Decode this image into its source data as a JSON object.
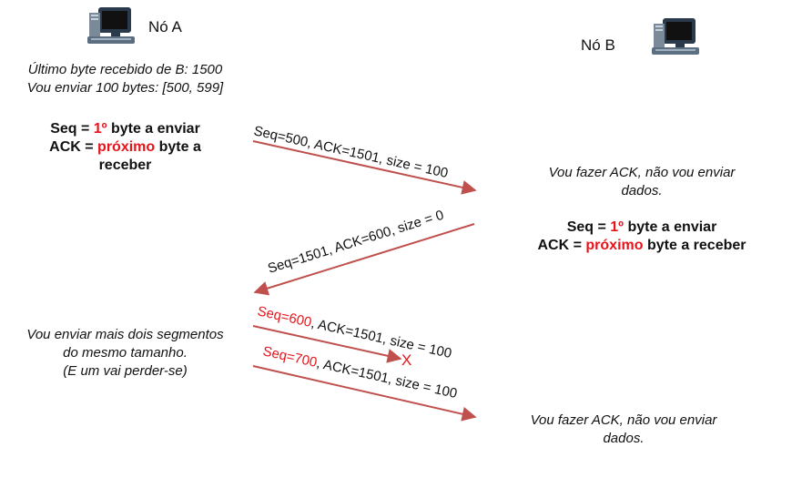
{
  "nodes": {
    "a": {
      "label": "Nó A"
    },
    "b": {
      "label": "Nó B"
    }
  },
  "left_notes": {
    "line1": "Último byte recebido de B: 1500",
    "line2": "Vou enviar 100 bytes: [500, 599]"
  },
  "rule_a": {
    "seq_prefix": "Seq = ",
    "seq_value": "1º",
    "seq_suffix": " byte a enviar",
    "ack_prefix": "ACK = ",
    "ack_value": "próximo",
    "ack_suffix": " byte a",
    "ack_line2": "receber"
  },
  "rule_b": {
    "seq_prefix": "Seq = ",
    "seq_value": "1º",
    "seq_suffix": " byte a enviar",
    "ack_prefix": "ACK = ",
    "ack_value": "próximo",
    "ack_suffix": " byte a receber"
  },
  "note_b1": {
    "line1": "Vou fazer ACK, não vou enviar",
    "line2": "dados."
  },
  "note_a2": {
    "line1": "Vou enviar mais dois segmentos",
    "line2": "do mesmo tamanho.",
    "line3": "(E um vai perder-se)"
  },
  "note_b2": {
    "line1": "Vou fazer ACK, não vou enviar",
    "line2": "dados."
  },
  "messages": {
    "m1": "Seq=500, ACK=1501, size = 100",
    "m2": "Seq=1501, ACK=600, size = 0",
    "m3_seq": "Seq=600",
    "m3_rest": ", ACK=1501, size = 100",
    "m4_seq": "Seq=700",
    "m4_rest": ", ACK=1501, size = 100",
    "lost_mark": "X"
  },
  "colors": {
    "arrow": "#c0504d",
    "highlight": "#e8141b"
  },
  "icons": [
    "computer-icon",
    "computer-icon"
  ]
}
